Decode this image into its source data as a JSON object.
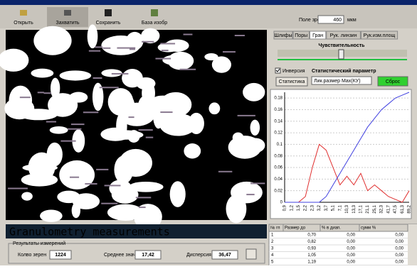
{
  "toolbar": {
    "buttons": [
      "Открыть",
      "Захватить",
      "Сохранить",
      "База изобр"
    ],
    "field_label": "Поле зрения",
    "field_value": "460",
    "field_unit": "мкм"
  },
  "tabs": [
    "Шлифы",
    "Поры",
    "Гран",
    "Рук. линзин",
    "Рук.изм.площ"
  ],
  "sensitivity_label": "Чувствительность",
  "inversion_label": "Инверсия",
  "stat_param_label": "Статистический параметр",
  "stats_button": "Статистика",
  "param_select": "Лик.размер Мах(КУ)",
  "reset_button": "Сброс",
  "chart_data": {
    "type": "line",
    "categories": [
      "0,9",
      "1,2",
      "1,5",
      "2,2",
      "2,3",
      "3,2",
      "3,7",
      "5,1",
      "7,1",
      "10,3",
      "13,3",
      "17,1",
      "21,1",
      "25,1",
      "32,3",
      "41,7",
      "47,5",
      "61,3",
      "89,2"
    ],
    "series": [
      {
        "color": "#e03030",
        "values": [
          0,
          0,
          0,
          0.01,
          0.06,
          0.1,
          0.09,
          0.06,
          0.03,
          0.045,
          0.03,
          0.05,
          0.02,
          0.03,
          0.02,
          0.01,
          0.005,
          0,
          0.02
        ]
      },
      {
        "color": "#4040e0",
        "values": [
          0,
          0,
          0,
          0,
          0,
          0,
          0.01,
          0.03,
          0.05,
          0.07,
          0.09,
          0.11,
          0.13,
          0.145,
          0.16,
          0.17,
          0.18,
          0.185,
          0.19
        ]
      }
    ],
    "ylim": [
      0,
      0.19
    ],
    "yticks": [
      0,
      0.02,
      0.04,
      0.06,
      0.08,
      0.1,
      0.12,
      0.14,
      0.16,
      0.18
    ],
    "grid": true
  },
  "measurements": {
    "title": "Granulometry measurements",
    "group_title": "Результаты измерений",
    "fields": [
      {
        "label": "Колво зерен",
        "value": "1224"
      },
      {
        "label": "Среднее значение",
        "value": "17,42"
      },
      {
        "label": "Дисперсия",
        "value": "36,47"
      }
    ]
  },
  "table": {
    "headers": [
      "№ гп",
      "Размер до",
      "% в диап.",
      "сумм %"
    ],
    "rows": [
      [
        "1",
        "0,70",
        "0,00",
        "0,00"
      ],
      [
        "2",
        "0,82",
        "0,00",
        "0,00"
      ],
      [
        "3",
        "0,93",
        "0,00",
        "0,00"
      ],
      [
        "4",
        "1,05",
        "0,00",
        "0,00"
      ],
      [
        "5",
        "1,19",
        "0,00",
        "0,00"
      ]
    ]
  }
}
